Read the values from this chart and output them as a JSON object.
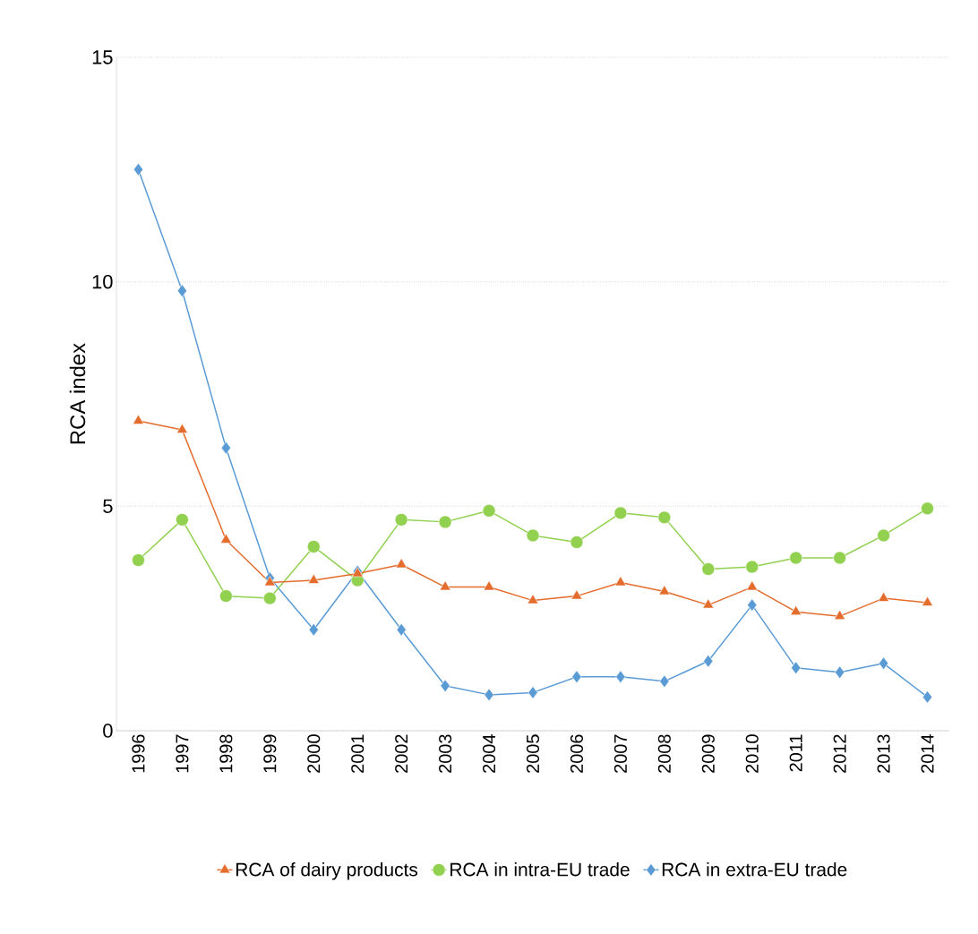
{
  "chart_data": {
    "type": "line",
    "ylabel": "RCA index",
    "categories": [
      "1996",
      "1997",
      "1998",
      "1999",
      "2000",
      "2001",
      "2002",
      "2003",
      "2004",
      "2005",
      "2006",
      "2007",
      "2008",
      "2009",
      "2010",
      "2011",
      "2012",
      "2013",
      "2014"
    ],
    "series": [
      {
        "name": "RCA of dairy products",
        "color": "#e46c2c",
        "marker": "triangle",
        "values": [
          6.9,
          6.7,
          4.25,
          3.3,
          3.35,
          3.5,
          3.7,
          3.2,
          3.2,
          2.9,
          3.0,
          3.3,
          3.1,
          2.8,
          3.2,
          2.65,
          2.55,
          2.95,
          2.85
        ]
      },
      {
        "name": "RCA in intra-EU trade",
        "color": "#92d050",
        "marker": "circle",
        "values": [
          3.8,
          4.7,
          3.0,
          2.95,
          4.1,
          3.35,
          4.7,
          4.65,
          4.9,
          4.35,
          4.2,
          4.85,
          4.75,
          3.6,
          3.65,
          3.85,
          3.85,
          4.35,
          4.95
        ]
      },
      {
        "name": "RCA in extra-EU trade",
        "color": "#5b9bd5",
        "marker": "diamond",
        "values": [
          12.5,
          9.8,
          6.3,
          3.4,
          2.25,
          3.55,
          2.25,
          1.0,
          0.8,
          0.85,
          1.2,
          1.2,
          1.1,
          1.55,
          2.8,
          1.4,
          1.3,
          1.5,
          0.75
        ]
      }
    ],
    "ylim": [
      0,
      15
    ],
    "yticks": [
      0,
      5,
      10,
      15
    ],
    "grid": "y",
    "legend": "bottom",
    "line_style": "solid"
  }
}
